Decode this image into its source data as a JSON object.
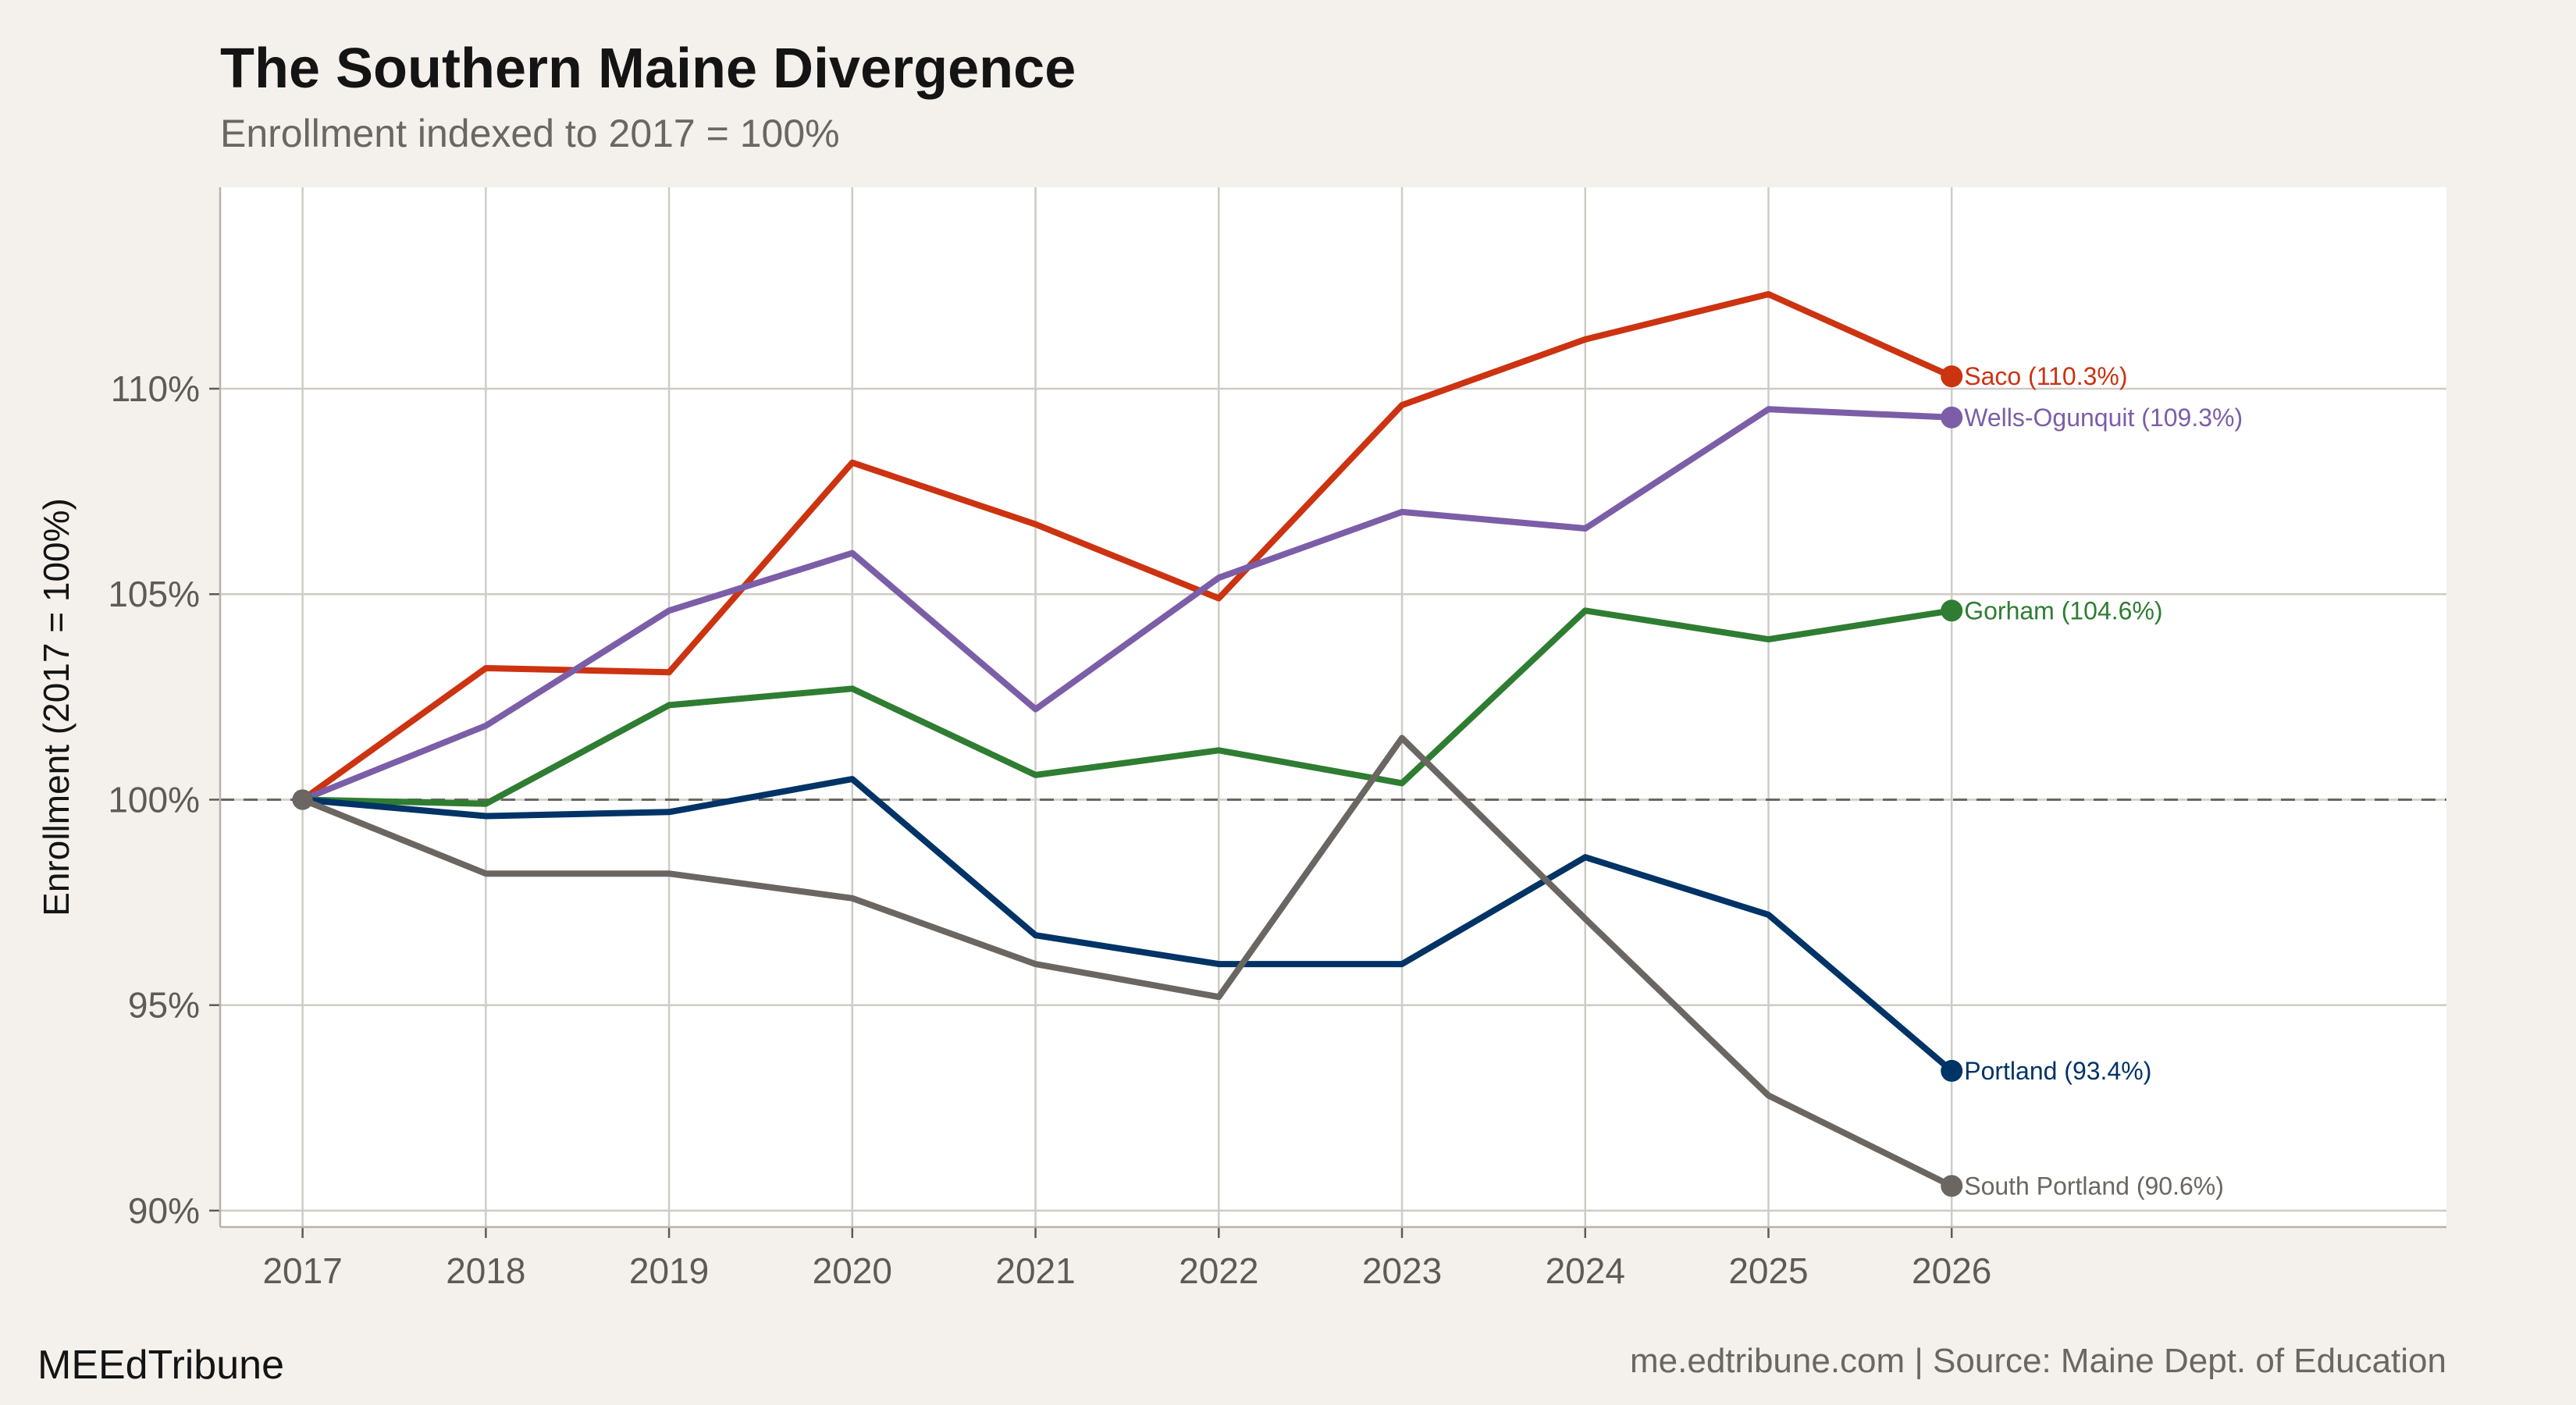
{
  "chart_data": {
    "type": "line",
    "title": "The Southern Maine Divergence",
    "subtitle": "Enrollment indexed to 2017 = 100%",
    "ylabel": "Enrollment (2017 = 100%)",
    "xlabel": "",
    "x": [
      2017,
      2018,
      2019,
      2020,
      2021,
      2022,
      2023,
      2024,
      2025,
      2026
    ],
    "x_tick_labels": [
      "2017",
      "2018",
      "2019",
      "2020",
      "2021",
      "2022",
      "2023",
      "2024",
      "2025",
      "2026"
    ],
    "xlim": [
      2016.55,
      2028.7
    ],
    "ylim": [
      89.6,
      114.9
    ],
    "y_ticks": [
      90,
      95,
      100,
      105,
      110
    ],
    "y_tick_labels": [
      "90%",
      "95%",
      "100%",
      "105%",
      "110%"
    ],
    "reference_line": 100,
    "grid": true,
    "legend": "direct labels at line ends",
    "series": [
      {
        "name": "Saco",
        "end_label": "Saco (110.3%)",
        "color": "#cc3311",
        "values": [
          100,
          103.2,
          103.1,
          108.2,
          106.7,
          104.9,
          109.6,
          111.2,
          112.3,
          110.3
        ]
      },
      {
        "name": "Wells-Ogunquit",
        "end_label": "Wells-Ogunquit (109.3%)",
        "color": "#7b5ea7",
        "values": [
          100,
          101.8,
          104.6,
          106.0,
          102.2,
          105.4,
          107.0,
          106.6,
          109.5,
          109.3
        ]
      },
      {
        "name": "Gorham",
        "end_label": "Gorham (104.6%)",
        "color": "#2e7d32",
        "values": [
          100,
          99.9,
          102.3,
          102.7,
          100.6,
          101.2,
          100.4,
          104.6,
          103.9,
          104.6
        ]
      },
      {
        "name": "Portland",
        "end_label": "Portland (93.4%)",
        "color": "#003366",
        "values": [
          100,
          99.6,
          99.7,
          100.5,
          96.7,
          96.0,
          96.0,
          98.6,
          97.2,
          93.4
        ]
      },
      {
        "name": "South Portland",
        "end_label": "South Portland (90.6%)",
        "color": "#6b6661",
        "values": [
          100,
          98.2,
          98.2,
          97.6,
          96.0,
          95.2,
          101.5,
          97.1,
          92.8,
          90.6
        ]
      }
    ]
  },
  "footer": {
    "brand": "MEEdTribune",
    "source": "me.edtribune.com | Source: Maine Dept. of Education"
  }
}
